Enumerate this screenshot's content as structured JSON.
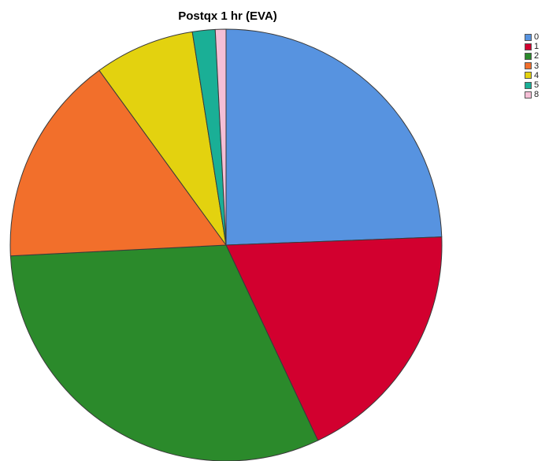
{
  "chart_data": {
    "type": "pie",
    "title": "Postqx 1 hr (EVA)",
    "categories": [
      "0",
      "1",
      "2",
      "3",
      "4",
      "5",
      "8"
    ],
    "values": [
      24.4,
      18.6,
      31.2,
      15.8,
      7.5,
      1.7,
      0.8
    ],
    "colors": [
      "#5793e0",
      "#d2002f",
      "#2b8a2b",
      "#f26f2b",
      "#e3d20f",
      "#1aaf96",
      "#f5bfd6"
    ],
    "legend_position": "right",
    "start": "12 o'clock",
    "direction": "clockwise"
  }
}
